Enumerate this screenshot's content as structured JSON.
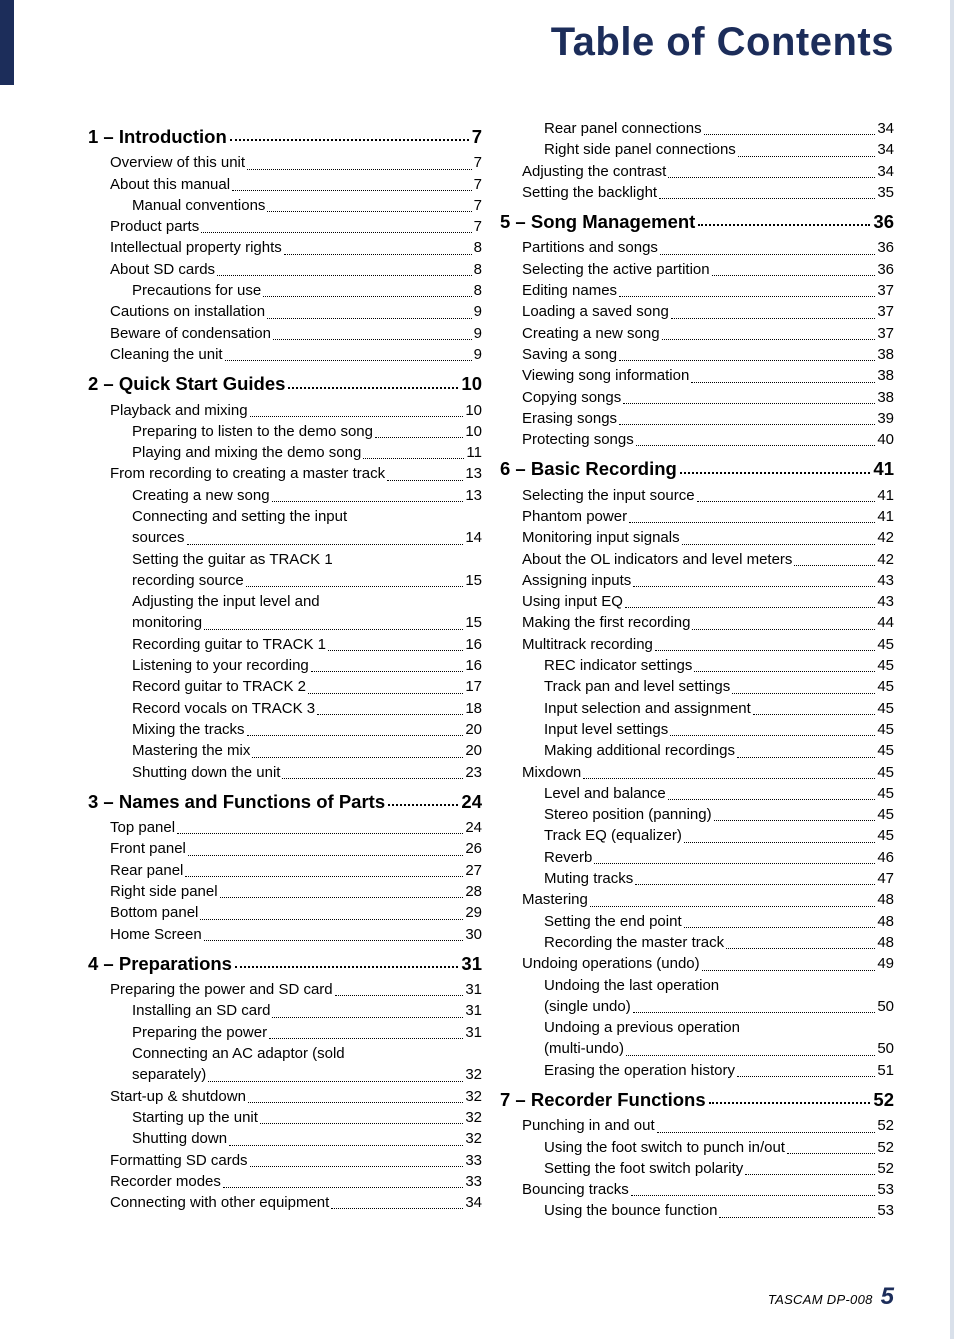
{
  "meta": {
    "title": "Table of Contents",
    "footer_model": "TASCAM  DP-008",
    "footer_page": "5"
  },
  "left_col": [
    {
      "type": "section",
      "label": "1 – Introduction",
      "page": "7"
    },
    {
      "type": "e1",
      "label": "Overview of this unit",
      "page": "7"
    },
    {
      "type": "e1",
      "label": "About this manual",
      "page": "7"
    },
    {
      "type": "e2",
      "label": "Manual conventions",
      "page": "7"
    },
    {
      "type": "e1",
      "label": "Product parts",
      "page": "7"
    },
    {
      "type": "e1",
      "label": "Intellectual property rights",
      "page": "8"
    },
    {
      "type": "e1",
      "label": "About SD cards",
      "page": "8"
    },
    {
      "type": "e2",
      "label": "Precautions for use",
      "page": "8"
    },
    {
      "type": "e1",
      "label": "Cautions on installation",
      "page": "9"
    },
    {
      "type": "e1",
      "label": "Beware of condensation",
      "page": "9"
    },
    {
      "type": "e1",
      "label": "Cleaning the unit",
      "page": "9"
    },
    {
      "type": "section",
      "label": "2 – Quick Start Guides",
      "page": "10"
    },
    {
      "type": "e1",
      "label": "Playback and mixing",
      "page": "10"
    },
    {
      "type": "e2",
      "label": "Preparing to listen to the demo song",
      "page": "10",
      "tight": true
    },
    {
      "type": "e2",
      "label": "Playing and mixing the demo song",
      "page": "11"
    },
    {
      "type": "e1",
      "label": "From recording to creating a master track",
      "page": "13",
      "tight": true
    },
    {
      "type": "e2",
      "label": "Creating a new song",
      "page": "13"
    },
    {
      "type": "e2",
      "label": "Connecting and setting the input",
      "wrap": true
    },
    {
      "type": "e2cont",
      "label": "sources",
      "page": "14"
    },
    {
      "type": "e2",
      "label": "Setting the guitar as TRACK 1",
      "wrap": true
    },
    {
      "type": "e2cont",
      "label": "recording source",
      "page": "15"
    },
    {
      "type": "e2",
      "label": "Adjusting the input level and",
      "wrap": true
    },
    {
      "type": "e2cont",
      "label": "monitoring",
      "page": "15"
    },
    {
      "type": "e2",
      "label": "Recording guitar to TRACK 1",
      "page": "16"
    },
    {
      "type": "e2",
      "label": "Listening to your recording",
      "page": "16"
    },
    {
      "type": "e2",
      "label": "Record guitar to TRACK 2",
      "page": "17"
    },
    {
      "type": "e2",
      "label": "Record vocals on TRACK 3",
      "page": "18"
    },
    {
      "type": "e2",
      "label": "Mixing the tracks",
      "page": "20"
    },
    {
      "type": "e2",
      "label": "Mastering the mix",
      "page": "20"
    },
    {
      "type": "e2",
      "label": "Shutting down the unit",
      "page": "23"
    },
    {
      "type": "section",
      "label": "3 – Names and Functions of Parts",
      "page": "24",
      "tight": true
    },
    {
      "type": "e1",
      "label": "Top panel",
      "page": "24"
    },
    {
      "type": "e1",
      "label": "Front panel",
      "page": "26"
    },
    {
      "type": "e1",
      "label": "Rear panel",
      "page": "27"
    },
    {
      "type": "e1",
      "label": "Right side panel",
      "page": "28"
    },
    {
      "type": "e1",
      "label": "Bottom panel",
      "page": "29"
    },
    {
      "type": "e1",
      "label": "Home Screen",
      "page": "30"
    },
    {
      "type": "section",
      "label": "4 – Preparations",
      "page": "31"
    },
    {
      "type": "e1",
      "label": "Preparing the power and SD card",
      "page": "31"
    },
    {
      "type": "e2",
      "label": "Installing an SD card",
      "page": "31"
    },
    {
      "type": "e2",
      "label": "Preparing the power",
      "page": "31"
    },
    {
      "type": "e2",
      "label": "Connecting an AC adaptor (sold",
      "wrap": true
    },
    {
      "type": "e2cont",
      "label": "separately)",
      "page": "32"
    },
    {
      "type": "e1",
      "label": "Start-up & shutdown",
      "page": "32"
    },
    {
      "type": "e2",
      "label": "Starting up the unit",
      "page": "32"
    },
    {
      "type": "e2",
      "label": "Shutting down",
      "page": "32"
    },
    {
      "type": "e1",
      "label": "Formatting SD cards",
      "page": "33"
    },
    {
      "type": "e1",
      "label": "Recorder modes",
      "page": "33"
    },
    {
      "type": "e1",
      "label": "Connecting with other equipment",
      "page": "34"
    }
  ],
  "right_col": [
    {
      "type": "e2",
      "label": "Rear panel connections",
      "page": "34"
    },
    {
      "type": "e2",
      "label": "Right side panel connections",
      "page": "34"
    },
    {
      "type": "e1",
      "label": "Adjusting the contrast",
      "page": "34"
    },
    {
      "type": "e1",
      "label": "Setting the backlight",
      "page": "35"
    },
    {
      "type": "section",
      "label": "5 – Song Management",
      "page": "36"
    },
    {
      "type": "e1",
      "label": "Partitions and songs",
      "page": "36"
    },
    {
      "type": "e1",
      "label": "Selecting the active partition",
      "page": "36"
    },
    {
      "type": "e1",
      "label": "Editing names",
      "page": "37"
    },
    {
      "type": "e1",
      "label": "Loading a saved song",
      "page": "37"
    },
    {
      "type": "e1",
      "label": "Creating a new song",
      "page": "37"
    },
    {
      "type": "e1",
      "label": "Saving a song",
      "page": "38"
    },
    {
      "type": "e1",
      "label": "Viewing song information",
      "page": "38"
    },
    {
      "type": "e1",
      "label": "Copying songs",
      "page": "38"
    },
    {
      "type": "e1",
      "label": "Erasing songs",
      "page": "39"
    },
    {
      "type": "e1",
      "label": "Protecting songs",
      "page": "40"
    },
    {
      "type": "section",
      "label": "6 – Basic Recording",
      "page": "41"
    },
    {
      "type": "e1",
      "label": "Selecting the input source",
      "page": "41"
    },
    {
      "type": "e1",
      "label": "Phantom power",
      "page": "41"
    },
    {
      "type": "e1",
      "label": "Monitoring input signals",
      "page": "42"
    },
    {
      "type": "e1",
      "label": "About the OL indicators and level meters",
      "page": "42",
      "tight": true
    },
    {
      "type": "e1",
      "label": "Assigning inputs",
      "page": "43"
    },
    {
      "type": "e1",
      "label": "Using input EQ",
      "page": "43"
    },
    {
      "type": "e1",
      "label": "Making the first recording",
      "page": "44"
    },
    {
      "type": "e1",
      "label": "Multitrack recording",
      "page": "45"
    },
    {
      "type": "e2",
      "label": "REC indicator settings",
      "page": "45"
    },
    {
      "type": "e2",
      "label": "Track pan and level settings",
      "page": "45"
    },
    {
      "type": "e2",
      "label": "Input selection and assignment",
      "page": "45"
    },
    {
      "type": "e2",
      "label": "Input level settings",
      "page": "45"
    },
    {
      "type": "e2",
      "label": "Making additional recordings",
      "page": "45"
    },
    {
      "type": "e1",
      "label": "Mixdown",
      "page": "45"
    },
    {
      "type": "e2",
      "label": "Level and balance",
      "page": "45"
    },
    {
      "type": "e2",
      "label": "Stereo position (panning)",
      "page": "45"
    },
    {
      "type": "e2",
      "label": "Track EQ (equalizer)",
      "page": "45"
    },
    {
      "type": "e2",
      "label": "Reverb",
      "page": "46"
    },
    {
      "type": "e2",
      "label": "Muting tracks",
      "page": "47"
    },
    {
      "type": "e1",
      "label": "Mastering",
      "page": "48"
    },
    {
      "type": "e2",
      "label": "Setting the end point",
      "page": "48"
    },
    {
      "type": "e2",
      "label": "Recording the master track",
      "page": "48"
    },
    {
      "type": "e1",
      "label": "Undoing operations (undo)",
      "page": "49"
    },
    {
      "type": "e2",
      "label": "Undoing the last operation",
      "wrap": true
    },
    {
      "type": "e2cont",
      "label": "(single undo)",
      "page": "50"
    },
    {
      "type": "e2",
      "label": "Undoing a previous operation",
      "wrap": true
    },
    {
      "type": "e2cont",
      "label": "(multi-undo)",
      "page": "50"
    },
    {
      "type": "e2",
      "label": "Erasing the operation history",
      "page": "51"
    },
    {
      "type": "section",
      "label": "7 – Recorder Functions",
      "page": "52"
    },
    {
      "type": "e1",
      "label": "Punching in and out",
      "page": "52"
    },
    {
      "type": "e2",
      "label": "Using the foot switch to punch in/out",
      "page": "52",
      "tight": true
    },
    {
      "type": "e2",
      "label": "Setting the foot switch polarity",
      "page": "52"
    },
    {
      "type": "e1",
      "label": "Bouncing tracks",
      "page": "53"
    },
    {
      "type": "e2",
      "label": "Using the bounce function",
      "page": "53"
    }
  ]
}
